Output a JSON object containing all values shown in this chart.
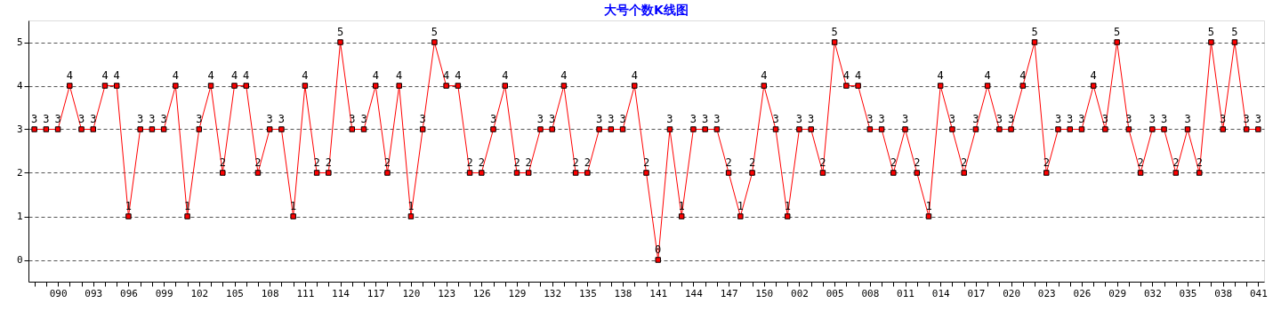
{
  "chart_data": {
    "type": "line",
    "title": "大号个数K线图",
    "categories": [
      null,
      null,
      "090",
      null,
      null,
      "093",
      null,
      null,
      "096",
      null,
      null,
      "099",
      null,
      null,
      "102",
      null,
      null,
      "105",
      null,
      null,
      "108",
      null,
      null,
      "111",
      null,
      null,
      "114",
      null,
      null,
      "117",
      null,
      null,
      "120",
      null,
      null,
      "123",
      null,
      null,
      "126",
      null,
      null,
      "129",
      null,
      null,
      "132",
      null,
      null,
      "135",
      null,
      null,
      "138",
      null,
      null,
      "141",
      null,
      null,
      "144",
      null,
      null,
      "147",
      null,
      null,
      "150",
      null,
      null,
      "002",
      null,
      null,
      "005",
      null,
      null,
      "008",
      null,
      null,
      "011",
      null,
      null,
      "014",
      null,
      null,
      "017",
      null,
      null,
      "020",
      null,
      null,
      "023",
      null,
      null,
      "026",
      null,
      null,
      "029",
      null,
      null,
      "032",
      null,
      null,
      "035",
      null,
      null,
      "038",
      null,
      null,
      "041"
    ],
    "series": [
      {
        "color": "#ff0000",
        "values": [
          3,
          3,
          3,
          4,
          3,
          3,
          4,
          4,
          1,
          3,
          3,
          3,
          4,
          1,
          3,
          4,
          2,
          4,
          4,
          2,
          3,
          3,
          1,
          4,
          2,
          2,
          5,
          3,
          3,
          4,
          2,
          4,
          1,
          3,
          5,
          4,
          4,
          2,
          2,
          3,
          4,
          2,
          2,
          3,
          3,
          4,
          2,
          2,
          3,
          3,
          3,
          4,
          2,
          0,
          3,
          1,
          3,
          3,
          3,
          2,
          1,
          2,
          4,
          3,
          1,
          3,
          3,
          2,
          5,
          4,
          4,
          3,
          3,
          2,
          3,
          2,
          1,
          4,
          3,
          2,
          3,
          4,
          3,
          3,
          4,
          5,
          2,
          3,
          3,
          3,
          4,
          3,
          5,
          3,
          2,
          3,
          3,
          2,
          3,
          2,
          5,
          3,
          5,
          3,
          3
        ]
      }
    ],
    "ylim": [
      -0.5,
      5.5
    ],
    "yticks": [
      0,
      1,
      2,
      3,
      4,
      5
    ],
    "grid": "y",
    "marker": "square",
    "line_style": "solid",
    "data_labels": true
  }
}
